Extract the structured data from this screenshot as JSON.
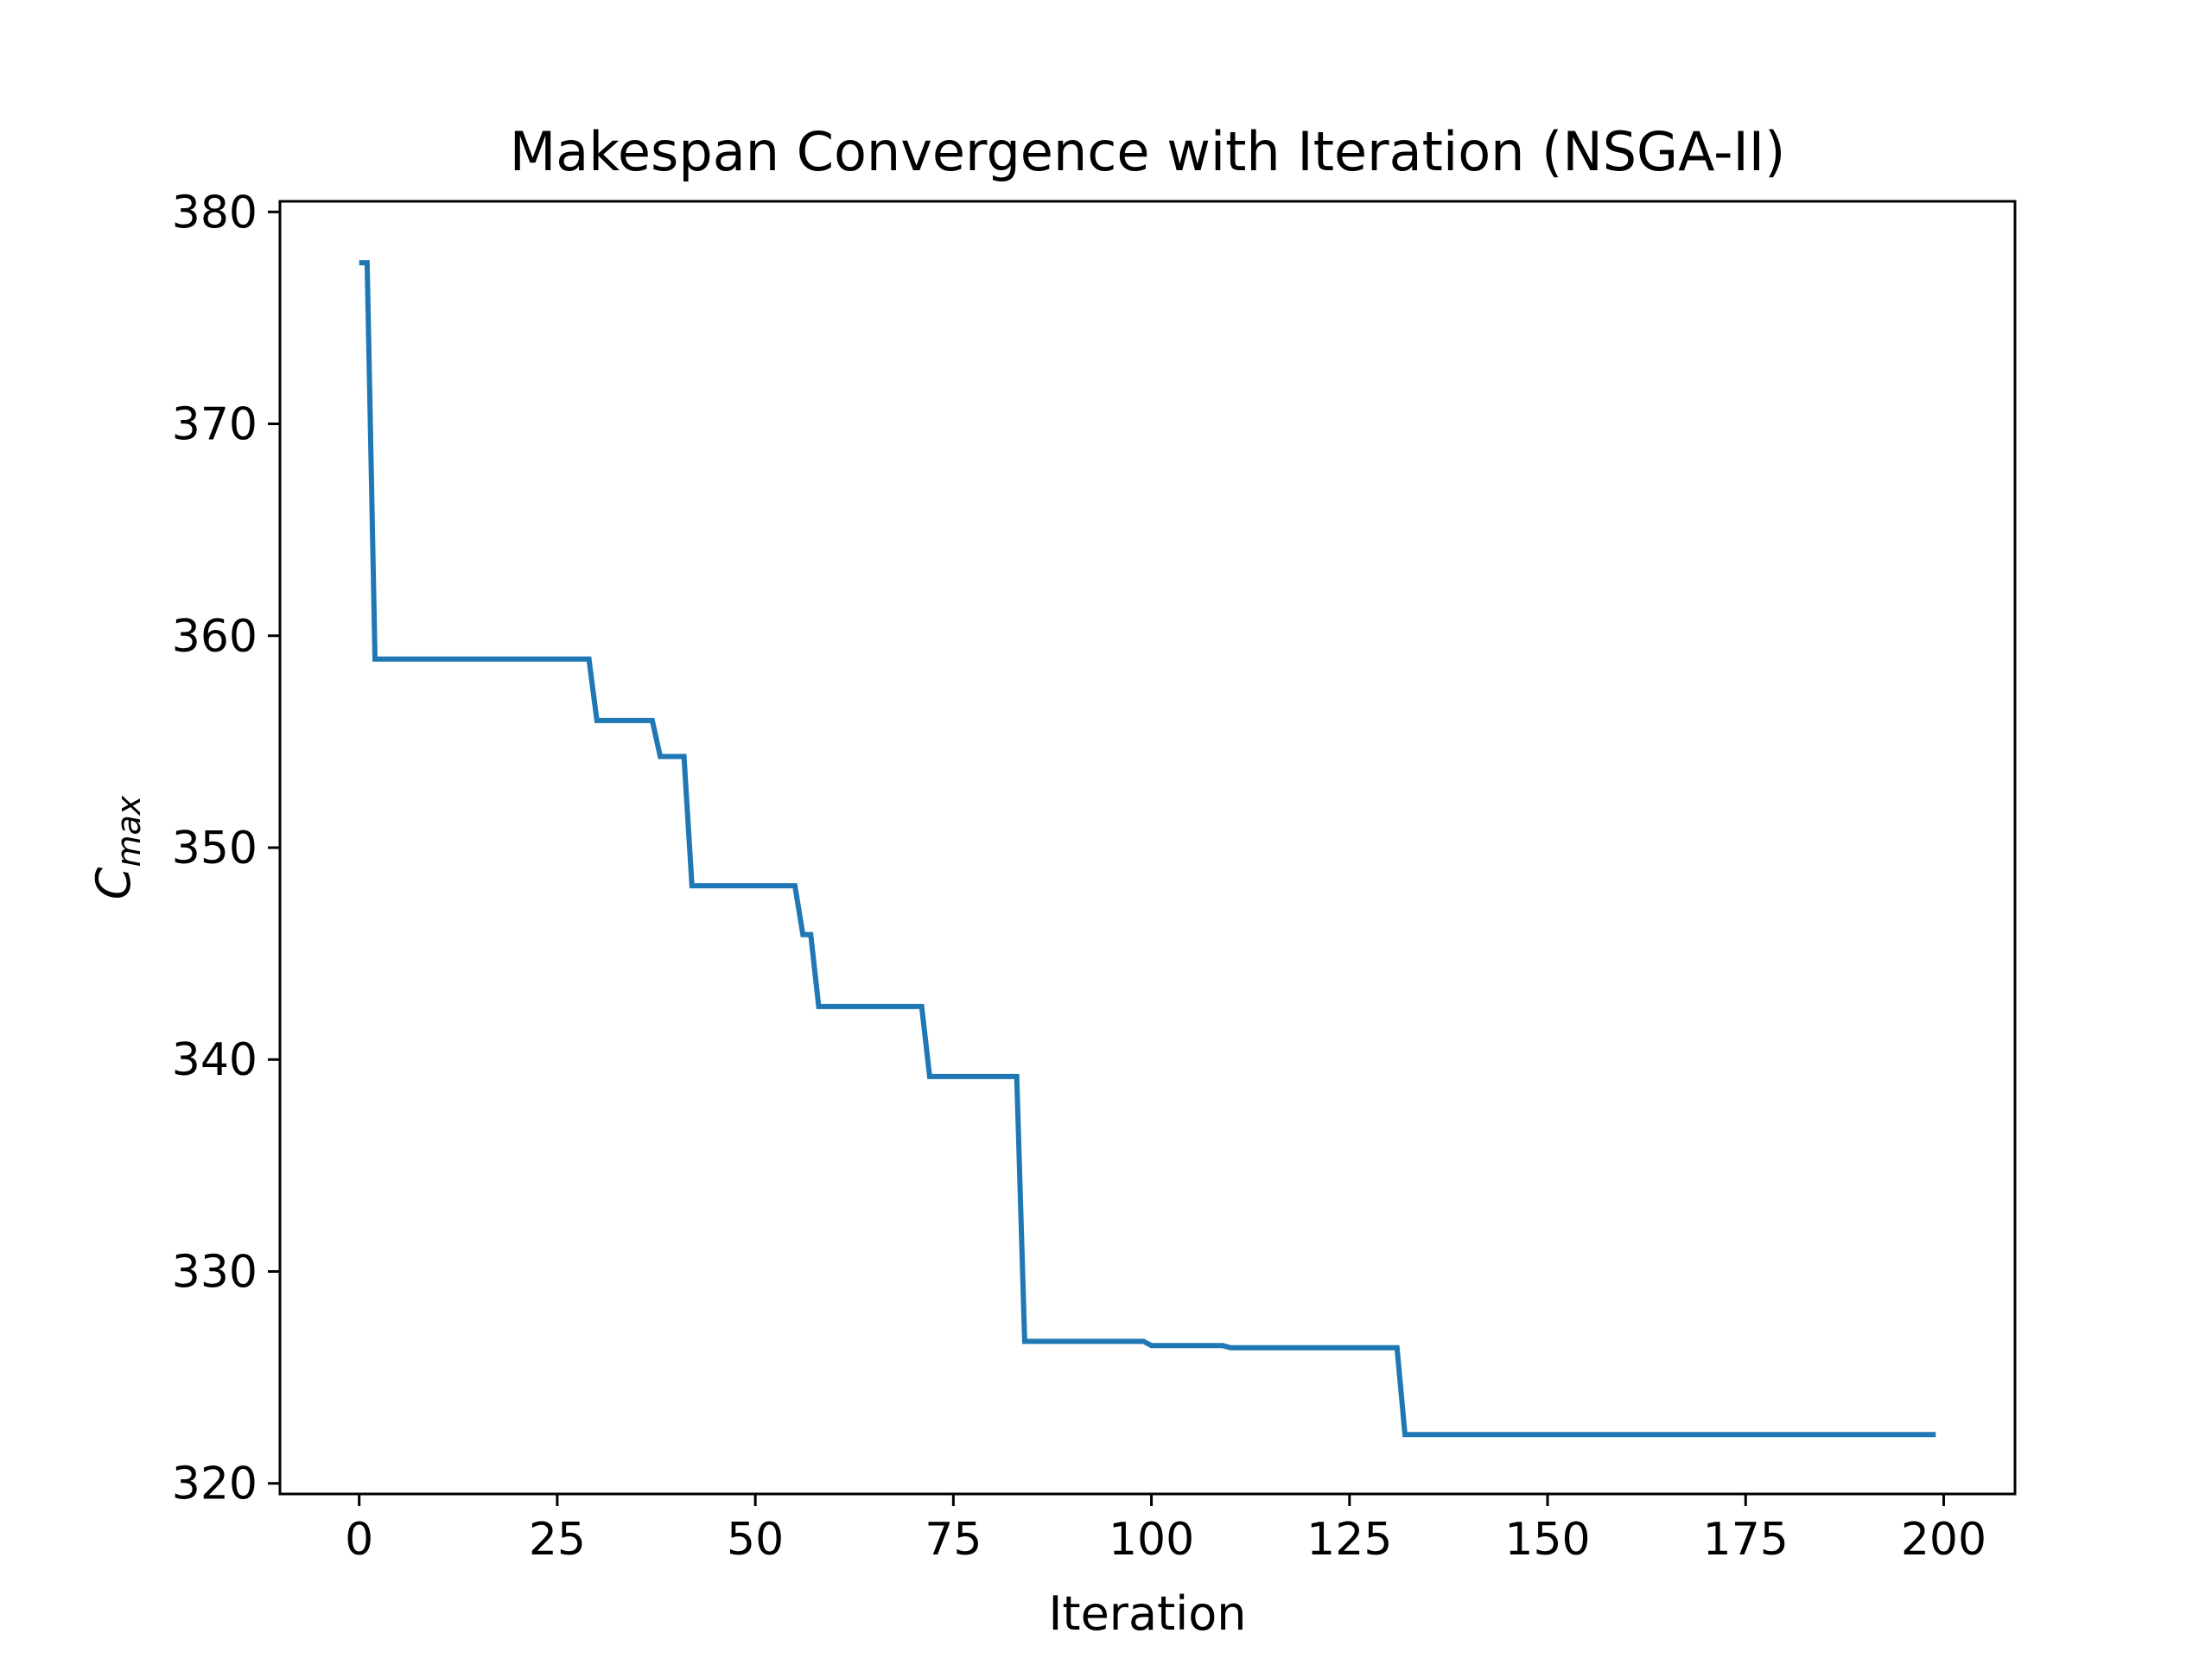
{
  "chart_data": {
    "type": "line",
    "title": "Makespan Convergence with Iteration (NSGA-II)",
    "xlabel": "Iteration",
    "ylabel": {
      "base": "C",
      "subscript": "max"
    },
    "xlim": [
      -10,
      209
    ],
    "ylim": [
      319.5,
      380.5
    ],
    "xticks": [
      0,
      25,
      50,
      75,
      100,
      125,
      150,
      175,
      200
    ],
    "yticks": [
      320,
      330,
      340,
      350,
      360,
      370,
      380
    ],
    "grid": false,
    "series": [
      {
        "color": "#1f77b4",
        "points": [
          [
            0,
            377.6
          ],
          [
            1,
            377.6
          ],
          [
            2,
            358.9
          ],
          [
            29,
            358.9
          ],
          [
            30,
            356.0
          ],
          [
            37,
            356.0
          ],
          [
            38,
            354.3
          ],
          [
            41,
            354.3
          ],
          [
            42,
            348.2
          ],
          [
            55,
            348.2
          ],
          [
            56,
            345.9
          ],
          [
            57,
            345.9
          ],
          [
            58,
            342.5
          ],
          [
            71,
            342.5
          ],
          [
            72,
            339.2
          ],
          [
            83,
            339.2
          ],
          [
            84,
            326.7
          ],
          [
            99,
            326.7
          ],
          [
            100,
            326.5
          ],
          [
            109,
            326.5
          ],
          [
            110,
            326.4
          ],
          [
            131,
            326.4
          ],
          [
            132,
            322.3
          ],
          [
            199,
            322.3
          ]
        ]
      }
    ]
  }
}
